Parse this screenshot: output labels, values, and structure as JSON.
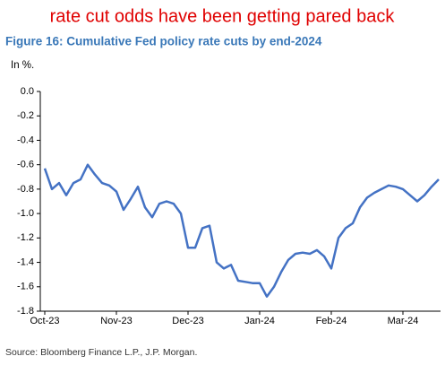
{
  "chart_data": {
    "type": "line",
    "title": "rate cut odds have been getting pared back",
    "subtitle": "Figure 16: Cumulative Fed policy rate cuts by end-2024",
    "unit_label": "In %.",
    "source": "Source: Bloomberg Finance L.P., J.P. Morgan.",
    "categories": [
      "Oct-23",
      null,
      null,
      null,
      null,
      null,
      null,
      null,
      null,
      null,
      "Nov-23",
      null,
      null,
      null,
      null,
      null,
      null,
      null,
      null,
      null,
      "Dec-23",
      null,
      null,
      null,
      null,
      null,
      null,
      null,
      null,
      null,
      "Jan-24",
      null,
      null,
      null,
      null,
      null,
      null,
      null,
      null,
      null,
      "Feb-24",
      null,
      null,
      null,
      null,
      null,
      null,
      null,
      null,
      null,
      "Mar-24",
      null,
      null,
      null,
      null,
      null
    ],
    "series": [
      {
        "color": "#4472c4",
        "values": [
          -0.63,
          -0.8,
          -0.75,
          -0.85,
          -0.75,
          -0.72,
          -0.6,
          -0.68,
          -0.75,
          -0.77,
          -0.82,
          -0.97,
          -0.88,
          -0.78,
          -0.95,
          -1.03,
          -0.92,
          -0.9,
          -0.92,
          -1.0,
          -1.28,
          -1.28,
          -1.12,
          -1.1,
          -1.4,
          -1.45,
          -1.42,
          -1.55,
          -1.56,
          -1.57,
          -1.57,
          -1.68,
          -1.6,
          -1.48,
          -1.38,
          -1.33,
          -1.32,
          -1.33,
          -1.3,
          -1.35,
          -1.45,
          -1.2,
          -1.12,
          -1.08,
          -0.95,
          -0.87,
          -0.83,
          -0.8,
          -0.77,
          -0.78,
          -0.8,
          -0.85,
          -0.9,
          -0.85,
          -0.78,
          -0.72
        ]
      }
    ],
    "ylim": [
      -1.8,
      0
    ],
    "yticks": [
      {
        "value": 0,
        "label": "0.0"
      },
      -0.2,
      -0.4,
      -0.6,
      -0.8,
      {
        "value": -1,
        "label": "-1.0"
      },
      -1.2,
      -1.4,
      -1.6,
      -1.8
    ],
    "grid": false
  }
}
